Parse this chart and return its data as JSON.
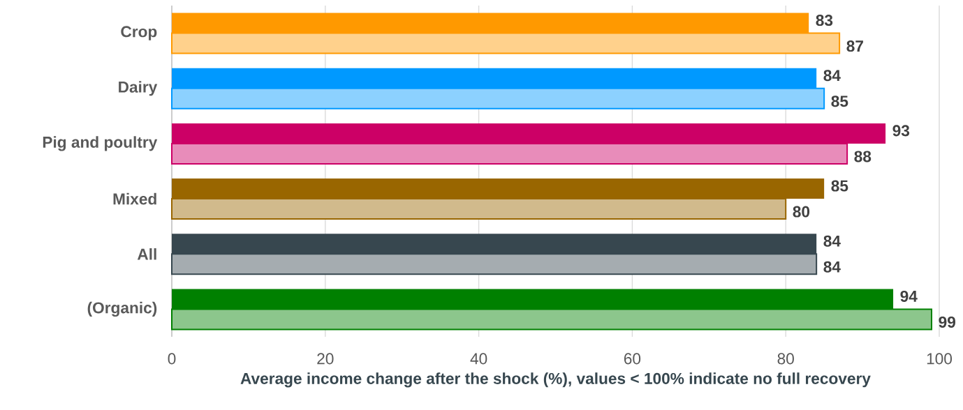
{
  "chart_data": {
    "type": "bar",
    "orientation": "horizontal",
    "xlabel": "Average income change after the shock (%), values < 100% indicate no full recovery",
    "categories": [
      "Crop",
      "Dairy",
      "Pig and poultry",
      "Mixed",
      "All",
      "(Organic)"
    ],
    "series": [
      {
        "values": [
          83,
          84,
          93,
          85,
          84,
          94
        ],
        "colors": [
          "#ff9900",
          "#0099ff",
          "#cc0066",
          "#996600",
          "#37474f",
          "#008000"
        ]
      },
      {
        "values": [
          87,
          85,
          88,
          80,
          84,
          99
        ],
        "colors": [
          "#ff9900",
          "#0099ff",
          "#cc0066",
          "#996600",
          "#37474f",
          "#008000"
        ]
      }
    ],
    "xlim": [
      0,
      100
    ],
    "xticks": [
      0,
      20,
      40,
      60,
      80,
      100
    ],
    "grid": "x",
    "data_labels": true
  }
}
